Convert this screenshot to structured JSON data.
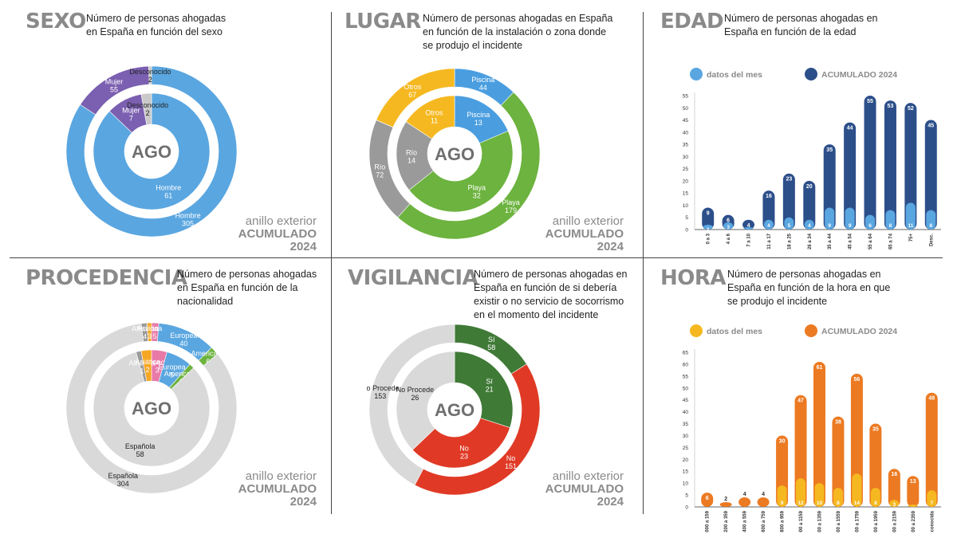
{
  "panels": {
    "sexo": {
      "title": "SEXO",
      "description": "Número de personas ahogadas en España en función del sexo",
      "ring_line1": "anillo exterior",
      "ring_line2": "ACUMULADO",
      "ring_line3": "2024",
      "center_label": "AGO"
    },
    "lugar": {
      "title": "LUGAR",
      "description": "Número de personas ahogadas en España en función de la instalación o zona donde se produjo el incidente",
      "ring_line1": "anillo exterior",
      "ring_line2": "ACUMULADO",
      "ring_line3": "2024",
      "center_label": "AGO"
    },
    "edad": {
      "title": "EDAD",
      "description": "Número de personas ahogadas en España en función de la edad"
    },
    "procedencia": {
      "title": "PROCEDENCIA",
      "description": "Número de personas ahogadas en España en función de la nacionalidad",
      "ring_line1": "anillo exterior",
      "ring_line2": "ACUMULADO",
      "ring_line3": "2024",
      "center_label": "AGO"
    },
    "vigilancia": {
      "title": "VIGILANCIA",
      "description": "Número de personas ahogadas en España en función de si debería existir o no servicio de socorrismo en el momento del incidente",
      "ring_line1": "anillo exterior",
      "ring_line2": "ACUMULADO",
      "ring_line3": "2024",
      "center_label": "AGO"
    },
    "hora": {
      "title": "HORA",
      "description": "Número de personas ahogadas en España en función de la hora en que se produjo el incidente"
    }
  },
  "chart_data": [
    {
      "id": "sexo",
      "type": "pie",
      "outer": {
        "series": "ACUMULADO 2024",
        "slices": [
          {
            "label": "Hombre",
            "value": 305,
            "color": "#5aa6e0"
          },
          {
            "label": "Mujer",
            "value": 55,
            "color": "#7b5fb0"
          },
          {
            "label": "Desconocido",
            "value": 2,
            "color": "#c9c9c9"
          }
        ]
      },
      "inner": {
        "series": "AGO",
        "slices": [
          {
            "label": "Hombre",
            "value": 61,
            "color": "#5aa6e0"
          },
          {
            "label": "Mujer",
            "value": 7,
            "color": "#7b5fb0"
          },
          {
            "label": "Desconocido",
            "value": 2,
            "color": "#c9c9c9"
          }
        ]
      }
    },
    {
      "id": "lugar",
      "type": "pie",
      "outer": {
        "series": "ACUMULADO 2024",
        "slices": [
          {
            "label": "Piscina",
            "value": 44,
            "color": "#4a9ee0"
          },
          {
            "label": "Playa",
            "value": 179,
            "color": "#6db33f"
          },
          {
            "label": "Río",
            "value": 72,
            "color": "#9a9a9a"
          },
          {
            "label": "Otros",
            "value": 67,
            "color": "#f5b820"
          }
        ]
      },
      "inner": {
        "series": "AGO",
        "slices": [
          {
            "label": "Piscina",
            "value": 13,
            "color": "#4a9ee0"
          },
          {
            "label": "Playa",
            "value": 32,
            "color": "#6db33f"
          },
          {
            "label": "Río",
            "value": 14,
            "color": "#9a9a9a"
          },
          {
            "label": "Otros",
            "value": 11,
            "color": "#f5b820"
          }
        ]
      }
    },
    {
      "id": "procedencia",
      "type": "pie",
      "outer": {
        "series": "ACUMULADO 2024",
        "slices": [
          {
            "label": "Desconocida",
            "value": 5,
            "color": "#e87aa8"
          },
          {
            "label": "Europea",
            "value": 40,
            "color": "#5aa6e0"
          },
          {
            "label": "Americana",
            "value": 6,
            "color": "#6db33f"
          },
          {
            "label": "Española",
            "value": 304,
            "color": "#d9d9d9"
          },
          {
            "label": "Africana",
            "value": 4,
            "color": "#9a9a9a"
          },
          {
            "label": "Asiática",
            "value": 3,
            "color": "#f5a623"
          }
        ]
      },
      "inner": {
        "series": "AGO",
        "slices": [
          {
            "label": "Desconocida",
            "value": 3,
            "color": "#e87aa8"
          },
          {
            "label": "Europea",
            "value": 5,
            "color": "#5aa6e0"
          },
          {
            "label": "Americana",
            "value": 1,
            "color": "#6db33f"
          },
          {
            "label": "Española",
            "value": 58,
            "color": "#d9d9d9"
          },
          {
            "label": "Africana",
            "value": 1,
            "color": "#9a9a9a"
          },
          {
            "label": "Asiática",
            "value": 2,
            "color": "#f5a623"
          }
        ]
      }
    },
    {
      "id": "vigilancia",
      "type": "pie",
      "outer": {
        "series": "ACUMULADO 2024",
        "slices": [
          {
            "label": "Sí",
            "value": 58,
            "color": "#3f7a36"
          },
          {
            "label": "No",
            "value": 151,
            "color": "#e03a26"
          },
          {
            "label": "No Procede",
            "value": 153,
            "color": "#d9d9d9"
          }
        ]
      },
      "inner": {
        "series": "AGO",
        "slices": [
          {
            "label": "Sí",
            "value": 21,
            "color": "#3f7a36"
          },
          {
            "label": "No",
            "value": 23,
            "color": "#e03a26"
          },
          {
            "label": "No Procede",
            "value": 26,
            "color": "#d9d9d9"
          }
        ]
      }
    },
    {
      "id": "edad",
      "type": "bar",
      "categories": [
        "0 a 3",
        "4 a 6",
        "7 a 10",
        "11 a 17",
        "18 a 25",
        "26 a 34",
        "35 a 44",
        "45 a 54",
        "55 a 64",
        "65 a 74",
        "75+",
        "Desc."
      ],
      "series": [
        {
          "name": "datos del mes",
          "color": "#5aa6e0",
          "values": [
            2,
            3,
            1,
            4,
            5,
            4,
            9,
            9,
            6,
            8,
            11,
            8
          ]
        },
        {
          "name": "ACUMULADO 2024",
          "color": "#2c4f8a",
          "values": [
            9,
            6,
            4,
            16,
            23,
            20,
            35,
            44,
            55,
            53,
            52,
            45
          ]
        }
      ],
      "ylim": [
        0,
        55
      ],
      "yticks": [
        0,
        5,
        10,
        15,
        20,
        25,
        30,
        35,
        40,
        45,
        50,
        55
      ],
      "grid": false,
      "legend": "top"
    },
    {
      "id": "hora",
      "type": "bar",
      "categories": [
        "000 a 159",
        "200 a 359",
        "400 a 559",
        "600 a 759",
        "800 a 959",
        "1000 a 1159",
        "1200 a 1359",
        "1400 a 1559",
        "1600 a 1759",
        "1800 a 1959",
        "2000 a 2159",
        "2200 a 2359",
        "Desconocida"
      ],
      "series": [
        {
          "name": "datos del mes",
          "color": "#f5b820",
          "values": [
            null,
            null,
            null,
            null,
            9,
            12,
            10,
            8,
            14,
            8,
            3,
            1,
            7
          ]
        },
        {
          "name": "ACUMULADO 2024",
          "color": "#ec7a22",
          "values": [
            6,
            2,
            4,
            4,
            30,
            47,
            61,
            38,
            56,
            35,
            16,
            13,
            48
          ]
        }
      ],
      "ylim": [
        0,
        65
      ],
      "yticks": [
        0,
        5,
        10,
        15,
        20,
        25,
        30,
        35,
        40,
        45,
        50,
        55,
        60,
        65
      ],
      "grid": false,
      "legend": "top"
    }
  ]
}
